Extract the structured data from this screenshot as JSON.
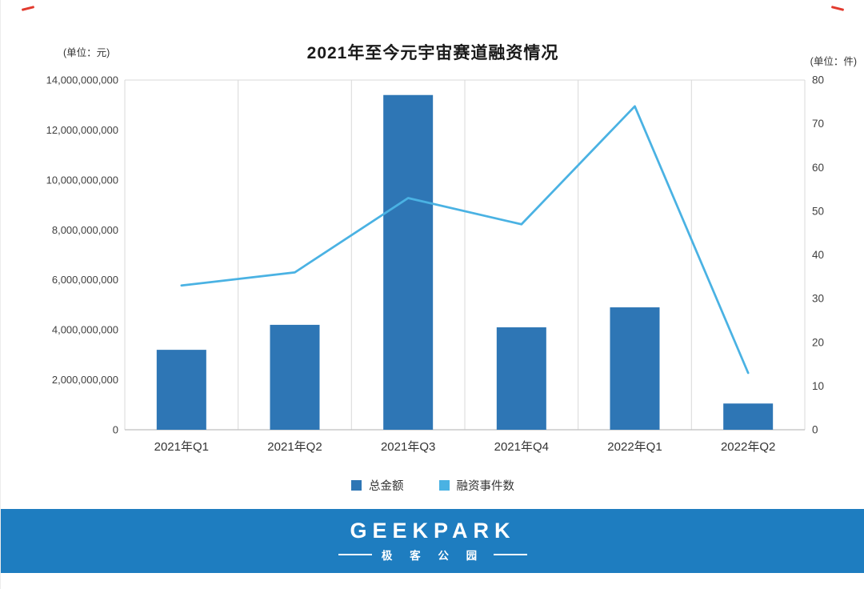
{
  "page": {
    "unit_left": "(单位：元)",
    "unit_right": "(单位：件)"
  },
  "colors": {
    "bar": "#2e76b5",
    "line": "#4ab2e3",
    "banner": "#1e7dc0",
    "crop_mark": "#e23a2e",
    "gridline": "#d9d9d9",
    "axis_line": "#bfbfbf",
    "tick_text": "#404040"
  },
  "chart_data": {
    "type": "bar+line combo",
    "title": "2021年至今元宇宙赛道融资情况",
    "categories": [
      "2021年Q1",
      "2021年Q2",
      "2021年Q3",
      "2021年Q4",
      "2022年Q1",
      "2022年Q2"
    ],
    "series": [
      {
        "name": "总金额",
        "type": "bar",
        "axis": "left",
        "color": "#2e76b5",
        "values": [
          3200000000,
          4200000000,
          13400000000,
          4100000000,
          4900000000,
          1050000000
        ]
      },
      {
        "name": "融资事件数",
        "type": "line",
        "axis": "right",
        "color": "#4ab2e3",
        "values": [
          33,
          36,
          53,
          47,
          74,
          13
        ]
      }
    ],
    "left_axis": {
      "min": 0,
      "max": 14000000000,
      "step": 2000000000,
      "tick_labels": [
        "0",
        "2,000,000,000",
        "4,000,000,000",
        "6,000,000,000",
        "8,000,000,000",
        "10,000,000,000",
        "12,000,000,000",
        "14,000,000,000"
      ]
    },
    "right_axis": {
      "min": 0,
      "max": 80,
      "step": 10,
      "tick_labels": [
        "0",
        "10",
        "20",
        "30",
        "40",
        "50",
        "60",
        "70",
        "80"
      ]
    },
    "grid": "vertical-only",
    "legend_position": "bottom"
  },
  "footer": {
    "brand": "GEEKPARK",
    "brand_cn": "极 客 公 园"
  }
}
